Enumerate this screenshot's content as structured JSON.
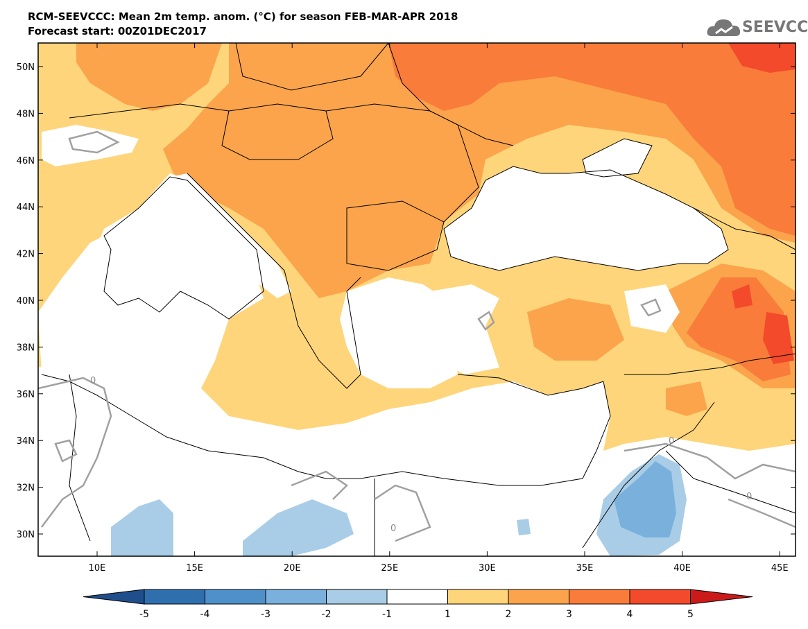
{
  "header": {
    "title": "RCM-SEEVCCC: Mean 2m temp. anom. (°C) for season FEB-MAR-APR 2018",
    "subtitle": "Forecast start: 00Z01DEC2017"
  },
  "logo": {
    "text": "SEEVCCC",
    "icon": "cloud-icon"
  },
  "map": {
    "lon_ticks": [
      "10E",
      "15E",
      "20E",
      "25E",
      "30E",
      "35E",
      "40E",
      "45E"
    ],
    "lat_ticks": [
      "50N",
      "48N",
      "46N",
      "44N",
      "42N",
      "40N",
      "38N",
      "36N",
      "34N",
      "32N",
      "30N"
    ],
    "contour_labels": [
      "0",
      "0",
      "0",
      "0"
    ],
    "colors": {
      "sea": "#ffffff",
      "land_border": "#000000"
    }
  },
  "colorbar": {
    "labels": [
      "-5",
      "-4",
      "-3",
      "-2",
      "-1",
      "1",
      "2",
      "3",
      "4",
      "5"
    ],
    "colors": [
      "#1f4e8c",
      "#2f6fae",
      "#4f90c8",
      "#79b0dc",
      "#a9cde6",
      "#ffffff",
      "#fed57a",
      "#fba44c",
      "#f97c3a",
      "#f24a2a",
      "#cc1a1a"
    ]
  }
}
